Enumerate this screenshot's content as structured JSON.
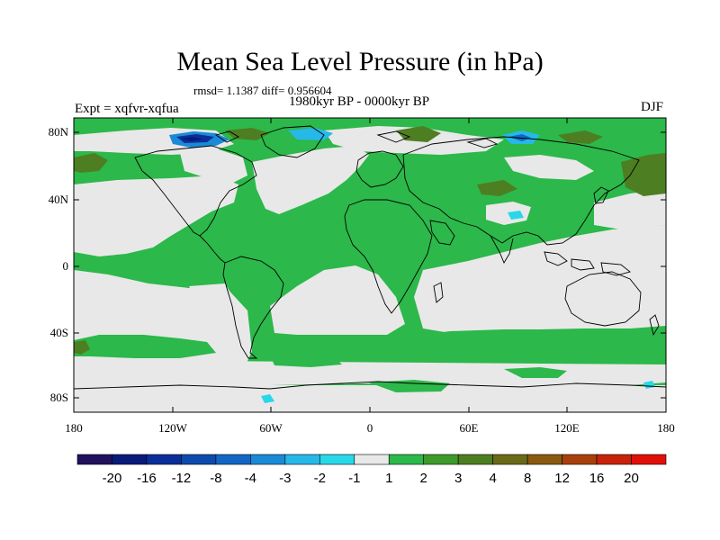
{
  "header": {
    "title": "Mean Sea Level Pressure (in hPa)",
    "stats": "rmsd= 1.1387 diff= 0.956604",
    "experiment": "Expt = xqfvr-xqfua",
    "period": "1980kyr BP - 0000kyr BP",
    "season": "DJF"
  },
  "axes": {
    "lat_labels": [
      "80N",
      "40N",
      "0",
      "40S",
      "80S"
    ],
    "lon_labels": [
      "180",
      "120W",
      "60W",
      "0",
      "60E",
      "120E",
      "180"
    ]
  },
  "colorbar": {
    "labels": [
      "-20",
      "-16",
      "-12",
      "-8",
      "-4",
      "-3",
      "-2",
      "-1",
      "1",
      "2",
      "3",
      "4",
      "8",
      "12",
      "16",
      "20"
    ],
    "colors": [
      "#22115e",
      "#0a1a7a",
      "#0b2f9a",
      "#0d4aad",
      "#1266c4",
      "#1a8ad6",
      "#26b8e8",
      "#28d8e8",
      "#e8e8e8",
      "#2cb84a",
      "#3e9a2a",
      "#4e7e22",
      "#6a6a18",
      "#8a5a10",
      "#a8400c",
      "#c8220a",
      "#e01008"
    ]
  },
  "colors": {
    "land_positive": "#2cb84a",
    "neutral": "#e8e8e8",
    "strong_positive": "#4e7e22",
    "negative": "#26b8e8",
    "strong_negative": "#0b2f9a"
  }
}
